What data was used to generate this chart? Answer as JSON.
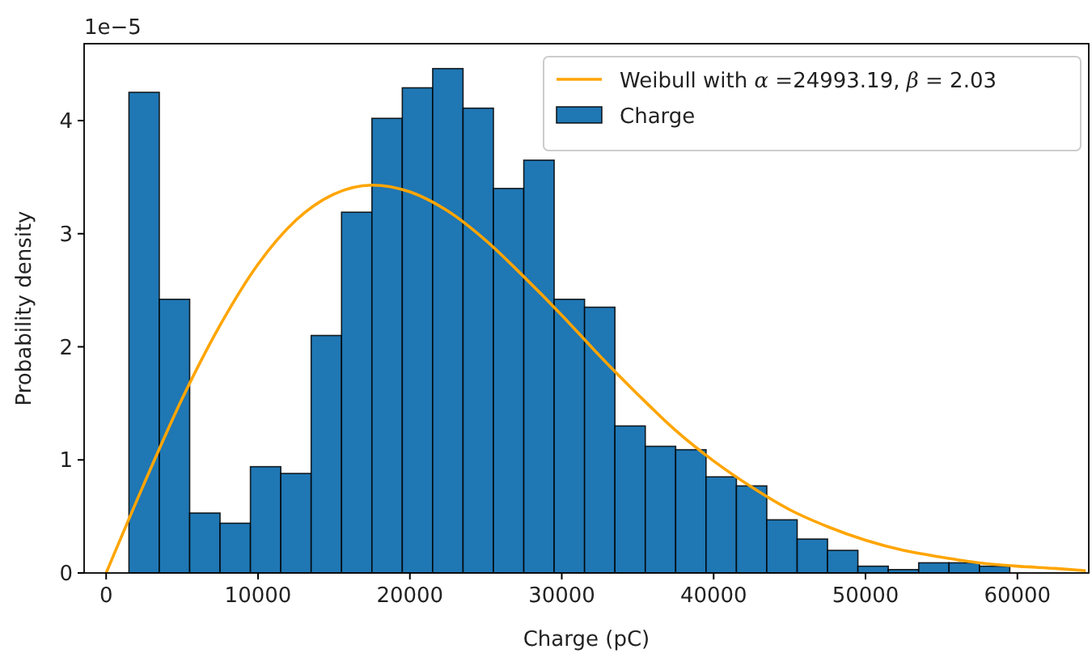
{
  "chart_data": {
    "type": "histogram",
    "xlabel": "Charge (pC)",
    "ylabel": "Probability density",
    "annotations": [
      "1e−5"
    ],
    "xlim": [
      -1450,
      64700
    ],
    "xticks": [
      0,
      10000,
      20000,
      30000,
      40000,
      50000,
      60000
    ],
    "ylim": [
      0,
      4.68
    ],
    "yticks": [
      0,
      1,
      2,
      3,
      4
    ],
    "legend": "top right",
    "series": [
      {
        "type": "line",
        "name": "Weibull with α =24993.19, β = 2.03",
        "color": "#ffa500",
        "x": [
          0,
          2500,
          5000,
          7500,
          10000,
          12500,
          15000,
          17500,
          20000,
          22500,
          25000,
          27500,
          30000,
          32500,
          35000,
          37500,
          40000,
          42500,
          45000,
          47500,
          50000,
          52500,
          55000,
          57500,
          60000,
          62500,
          64500
        ],
        "values": [
          0,
          0.79,
          1.54,
          2.19,
          2.73,
          3.12,
          3.35,
          3.43,
          3.37,
          3.2,
          2.94,
          2.62,
          2.28,
          1.92,
          1.58,
          1.26,
          0.99,
          0.76,
          0.56,
          0.41,
          0.29,
          0.2,
          0.14,
          0.09,
          0.06,
          0.04,
          0.02
        ]
      },
      {
        "name": "Charge",
        "color": "#1f77b4",
        "bins": [
          1500,
          3500,
          5500,
          7500,
          9500,
          11500,
          13500,
          15500,
          17500,
          19500,
          21500,
          23500,
          25500,
          27500,
          29500,
          31500,
          33500,
          35500,
          37500,
          39500,
          41500,
          43500,
          45500,
          47500,
          49500,
          51500,
          53500,
          55500,
          57500,
          59500
        ],
        "values": [
          4.25,
          2.42,
          0.53,
          0.44,
          0.94,
          0.88,
          2.1,
          3.19,
          4.02,
          4.29,
          4.46,
          4.11,
          3.4,
          3.65,
          2.42,
          2.35,
          1.3,
          1.12,
          1.09,
          0.85,
          0.77,
          0.47,
          0.3,
          0.2,
          0.06,
          0.03,
          0.09,
          0.09,
          0.06
        ]
      }
    ]
  }
}
